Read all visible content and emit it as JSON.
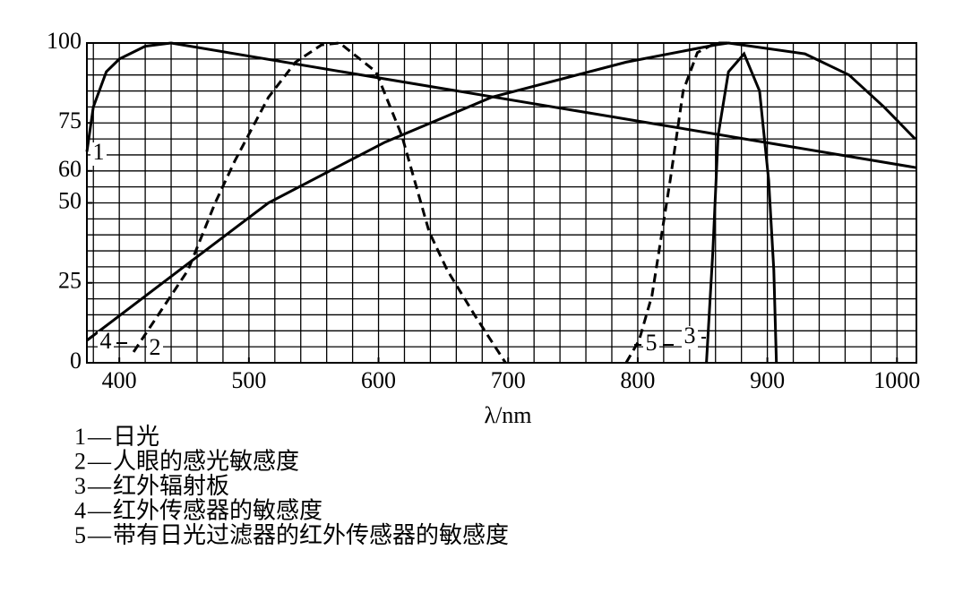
{
  "chart_data": {
    "type": "line",
    "xlabel": "λ/nm",
    "xlim": [
      375,
      1015
    ],
    "ylim": [
      0,
      100
    ],
    "xticks": [
      400,
      500,
      600,
      700,
      800,
      900,
      1000
    ],
    "yticks": [
      0,
      25,
      50,
      60,
      75,
      100
    ],
    "xminorticks": [
      380,
      400,
      420,
      440,
      460,
      480,
      500,
      520,
      540,
      560,
      580,
      600,
      620,
      640,
      660,
      680,
      700,
      720,
      740,
      760,
      780,
      800,
      820,
      840,
      860,
      880,
      900,
      920,
      940,
      960,
      980,
      1000
    ],
    "yminorticks": [
      5,
      10,
      15,
      20,
      25,
      30,
      35,
      40,
      45,
      50,
      55,
      60,
      65,
      70,
      75,
      80,
      85,
      90,
      95
    ],
    "grid": true,
    "legend_separator": "—",
    "series": [
      {
        "label": "1",
        "name": "日光",
        "color": "#000000",
        "dash": false,
        "x": [
          375,
          380,
          390,
          400,
          420,
          440,
          600,
          800,
          1015
        ],
        "values": [
          66,
          80,
          91,
          95,
          99,
          100,
          89.1,
          75.6,
          61
        ]
      },
      {
        "label": "2",
        "name": "人眼的感光敏感度",
        "color": "#000000",
        "dash": true,
        "x": [
          411,
          453,
          474,
          489,
          515,
          536,
          556,
          570,
          598,
          618,
          639,
          653,
          674,
          698
        ],
        "values": [
          3.4,
          29,
          50,
          63,
          83,
          94,
          99.4,
          100,
          91,
          71,
          41,
          29,
          15,
          0
        ]
      },
      {
        "label": "3",
        "name": "红外辐射板",
        "color": "#000000",
        "dash": false,
        "x": [
          853,
          858,
          862,
          870,
          882,
          894,
          901,
          905,
          907
        ],
        "values": [
          0,
          35,
          71,
          91,
          96.6,
          85,
          57,
          29,
          0
        ]
      },
      {
        "label": "4",
        "name": "红外传感器的敏感度",
        "color": "#000000",
        "dash": false,
        "x": [
          375,
          453,
          515,
          605,
          687,
          791,
          860,
          870,
          929,
          963,
          990,
          1014
        ],
        "values": [
          7,
          31,
          50,
          69,
          83,
          94,
          99.4,
          100,
          96.6,
          90,
          80,
          70
        ]
      },
      {
        "label": "5",
        "name": "带有日光过滤器的红外传感器的敏感度",
        "color": "#000000",
        "dash": true,
        "x": [
          791,
          801,
          811,
          825,
          835,
          846,
          860,
          870
        ],
        "values": [
          0,
          7,
          21,
          57,
          85,
          97,
          100,
          100
        ]
      }
    ]
  }
}
